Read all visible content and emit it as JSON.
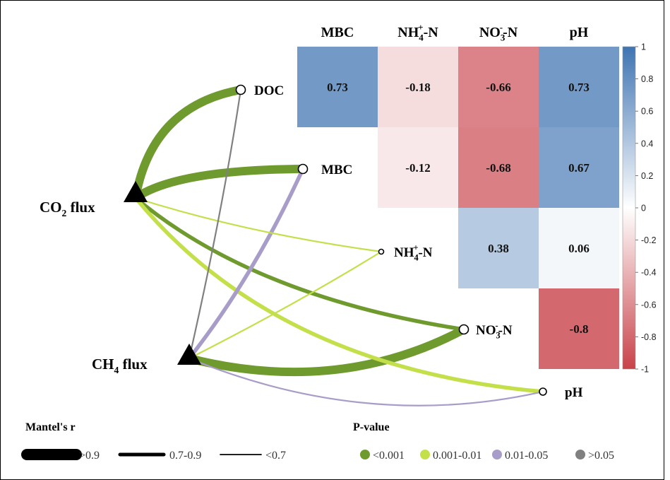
{
  "chart_data": {
    "type": "heatmap",
    "title": "",
    "columns": [
      {
        "base": "MBC",
        "sup": "",
        "tail": ""
      },
      {
        "base": "NH",
        "sub": "4",
        "sup": "+",
        "tail": "-N"
      },
      {
        "base": "NO",
        "sub": "3",
        "sup": "-",
        "tail": "-N"
      },
      {
        "base": "pH",
        "sup": "",
        "tail": ""
      }
    ],
    "rows": [
      {
        "base": "DOC",
        "sup": "",
        "tail": ""
      },
      {
        "base": "MBC",
        "sup": "",
        "tail": ""
      },
      {
        "base": "NH",
        "sub": "4",
        "sup": "+",
        "tail": "-N"
      },
      {
        "base": "NO",
        "sub": "3",
        "sup": "-",
        "tail": "-N"
      },
      {
        "base": "pH",
        "sup": "",
        "tail": ""
      }
    ],
    "cells": [
      {
        "row": 0,
        "col": 0,
        "value": 0.73,
        "label": "0.73"
      },
      {
        "row": 0,
        "col": 1,
        "value": -0.18,
        "label": "-0.18"
      },
      {
        "row": 0,
        "col": 2,
        "value": -0.66,
        "label": "-0.66"
      },
      {
        "row": 0,
        "col": 3,
        "value": 0.73,
        "label": "0.73"
      },
      {
        "row": 1,
        "col": 1,
        "value": -0.12,
        "label": "-0.12"
      },
      {
        "row": 1,
        "col": 2,
        "value": -0.68,
        "label": "-0.68"
      },
      {
        "row": 1,
        "col": 3,
        "value": 0.67,
        "label": "0.67"
      },
      {
        "row": 2,
        "col": 2,
        "value": 0.38,
        "label": "0.38"
      },
      {
        "row": 2,
        "col": 3,
        "value": 0.06,
        "label": "0.06"
      },
      {
        "row": 3,
        "col": 3,
        "value": -0.8,
        "label": "-0.8"
      }
    ],
    "colorbar": {
      "range": [
        -1,
        1
      ],
      "ticks": [
        "1",
        "0.8",
        "0.6",
        "0.4",
        "0.2",
        "0",
        "-0.2",
        "-0.4",
        "-0.6",
        "-0.8",
        "-1"
      ],
      "colors": {
        "negative": "#c8434a",
        "zero": "#ffffff",
        "positive": "#3f74b2"
      }
    },
    "nodes": [
      {
        "id": "co2",
        "base": "CO",
        "sub": "2",
        "tail": " flux"
      },
      {
        "id": "ch4",
        "base": "CH",
        "sub": "4",
        "tail": " flux"
      }
    ],
    "links": [
      {
        "from": "co2",
        "to_row": 0,
        "mantel_r": ">0.9",
        "p_value": "<0.001"
      },
      {
        "from": "co2",
        "to_row": 1,
        "mantel_r": ">0.9",
        "p_value": "<0.001"
      },
      {
        "from": "co2",
        "to_row": 2,
        "mantel_r": "<0.7",
        "p_value": "0.001-0.01"
      },
      {
        "from": "co2",
        "to_row": 3,
        "mantel_r": "0.7-0.9",
        "p_value": "<0.001"
      },
      {
        "from": "co2",
        "to_row": 4,
        "mantel_r": "0.7-0.9",
        "p_value": "0.001-0.01"
      },
      {
        "from": "ch4",
        "to_row": 0,
        "mantel_r": "<0.7",
        "p_value": ">0.05"
      },
      {
        "from": "ch4",
        "to_row": 1,
        "mantel_r": "0.7-0.9",
        "p_value": "0.01-0.05"
      },
      {
        "from": "ch4",
        "to_row": 2,
        "mantel_r": "<0.7",
        "p_value": "0.001-0.01"
      },
      {
        "from": "ch4",
        "to_row": 3,
        "mantel_r": ">0.9",
        "p_value": "<0.001"
      },
      {
        "from": "ch4",
        "to_row": 4,
        "mantel_r": "<0.7",
        "p_value": "0.01-0.05"
      }
    ],
    "legend": {
      "size_title": "Mantel's r",
      "size_items": [
        ">0.9",
        "0.7-0.9",
        "<0.7"
      ],
      "color_title": "P-value",
      "color_items": [
        {
          "label": "<0.001",
          "color": "#6f9a2e"
        },
        {
          "label": "0.001-0.01",
          "color": "#c3e04a"
        },
        {
          "label": "0.01-0.05",
          "color": "#a89cc8"
        },
        {
          "label": ">0.05",
          "color": "#808080"
        }
      ]
    }
  }
}
